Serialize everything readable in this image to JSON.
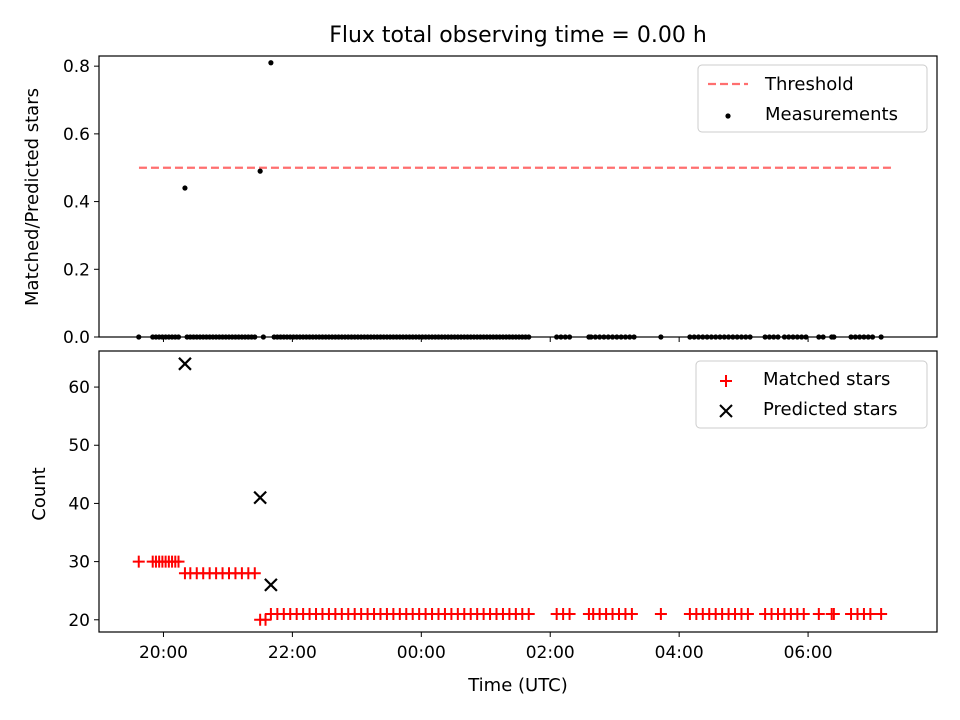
{
  "chart_data": [
    {
      "type": "scatter",
      "title": "Flux total observing time = 0.00 h",
      "ylabel": "Matched/Predicted stars",
      "xlabel": "",
      "x_unit": "hours (UTC), continuing past midnight",
      "xlim": [
        19.0,
        32.0
      ],
      "ylim": [
        0.0,
        0.83
      ],
      "yticks": [
        "0.0",
        "0.2",
        "0.4",
        "0.6",
        "0.8"
      ],
      "legend_position": "upper right",
      "series": [
        {
          "name": "Threshold",
          "style": "dashed-line",
          "color": "#ff6f6f",
          "x": [
            19.62,
            31.33
          ],
          "y": [
            0.5,
            0.5
          ]
        },
        {
          "name": "Measurements",
          "style": "dots",
          "color": "#000000",
          "nonzero_points": [
            {
              "x": "20:20",
              "y": 0.44
            },
            {
              "x": "21:30",
              "y": 0.49
            },
            {
              "x": "21:40",
              "y": 0.81
            }
          ],
          "zero_value_times": [
            "19:37",
            "19:50",
            "19:53",
            "19:56",
            "19:59",
            "20:02",
            "20:05",
            "20:08",
            "20:11",
            "20:14",
            "20:22",
            "20:25",
            "20:28",
            "20:31",
            "20:34",
            "20:37",
            "20:40",
            "20:43",
            "20:46",
            "20:49",
            "20:52",
            "20:55",
            "20:58",
            "21:01",
            "21:04",
            "21:07",
            "21:10",
            "21:13",
            "21:16",
            "21:19",
            "21:22",
            "21:25",
            "21:33",
            "21:43",
            "21:46",
            "21:49",
            "21:52",
            "21:55",
            "21:58",
            "22:01",
            "22:04",
            "22:07",
            "22:10",
            "22:13",
            "22:16",
            "22:19",
            "22:22",
            "22:25",
            "22:28",
            "22:31",
            "22:34",
            "22:37",
            "22:40",
            "22:43",
            "22:46",
            "22:49",
            "22:52",
            "22:55",
            "22:58",
            "23:01",
            "23:04",
            "23:07",
            "23:10",
            "23:13",
            "23:16",
            "23:19",
            "23:22",
            "23:25",
            "23:28",
            "23:31",
            "23:34",
            "23:37",
            "23:40",
            "23:43",
            "23:46",
            "23:49",
            "23:52",
            "23:55",
            "23:58",
            "00:01",
            "00:04",
            "00:07",
            "00:10",
            "00:13",
            "00:16",
            "00:19",
            "00:22",
            "00:25",
            "00:28",
            "00:31",
            "00:34",
            "00:37",
            "00:40",
            "00:43",
            "00:46",
            "00:49",
            "00:52",
            "00:55",
            "00:58",
            "01:01",
            "01:04",
            "01:07",
            "01:10",
            "01:13",
            "01:16",
            "01:19",
            "01:22",
            "01:25",
            "01:28",
            "01:31",
            "01:34",
            "01:37",
            "01:40",
            "02:06",
            "02:10",
            "02:14",
            "02:18",
            "02:36",
            "02:38",
            "02:42",
            "02:46",
            "02:50",
            "02:54",
            "02:58",
            "03:02",
            "03:06",
            "03:10",
            "03:14",
            "03:18",
            "03:43",
            "04:10",
            "04:14",
            "04:18",
            "04:22",
            "04:26",
            "04:30",
            "04:34",
            "04:38",
            "04:42",
            "04:46",
            "04:50",
            "04:54",
            "04:58",
            "05:02",
            "05:06",
            "05:20",
            "05:24",
            "05:28",
            "05:32",
            "05:38",
            "05:42",
            "05:46",
            "05:50",
            "05:54",
            "05:58",
            "06:10",
            "06:14",
            "06:22",
            "06:24",
            "06:40",
            "06:44",
            "06:48",
            "06:52",
            "06:56",
            "07:00",
            "07:08"
          ]
        }
      ]
    },
    {
      "type": "scatter",
      "title": "",
      "ylabel": "Count",
      "xlabel": "Time (UTC)",
      "x_unit": "hours (UTC), continuing past midnight",
      "xlim": [
        19.0,
        32.0
      ],
      "ylim": [
        17.9,
        66.2
      ],
      "yticks": [
        "20",
        "30",
        "40",
        "50",
        "60"
      ],
      "xticks": [
        {
          "value": 20,
          "label": "20:00"
        },
        {
          "value": 22,
          "label": "22:00"
        },
        {
          "value": 24,
          "label": "00:00"
        },
        {
          "value": 26,
          "label": "02:00"
        },
        {
          "value": 28,
          "label": "04:00"
        },
        {
          "value": 30,
          "label": "06:00"
        }
      ],
      "legend_position": "upper right",
      "series": [
        {
          "name": "Matched stars",
          "marker": "plus",
          "color": "#ff0000",
          "groups": [
            {
              "y": 30,
              "times": [
                "19:37",
                "19:50",
                "19:53",
                "19:56",
                "19:59",
                "20:02",
                "20:05",
                "20:08",
                "20:11",
                "20:14"
              ]
            },
            {
              "y": 28,
              "times": [
                "20:20",
                "20:25",
                "20:31",
                "20:37",
                "20:43",
                "20:49",
                "20:55",
                "21:01",
                "21:07",
                "21:13",
                "21:19",
                "21:25"
              ]
            },
            {
              "y": 20,
              "times": [
                "21:30",
                "21:35"
              ]
            },
            {
              "y": 21,
              "times": [
                "21:40",
                "21:46",
                "21:52",
                "21:58",
                "22:04",
                "22:10",
                "22:16",
                "22:22",
                "22:28",
                "22:34",
                "22:40",
                "22:46",
                "22:52",
                "22:58",
                "23:04",
                "23:10",
                "23:16",
                "23:22",
                "23:28",
                "23:34",
                "23:40",
                "23:46",
                "23:52",
                "23:58",
                "00:04",
                "00:10",
                "00:16",
                "00:22",
                "00:28",
                "00:34",
                "00:40",
                "00:46",
                "00:52",
                "00:58",
                "01:04",
                "01:10",
                "01:16",
                "01:22",
                "01:28",
                "01:34",
                "01:40",
                "02:06",
                "02:12",
                "02:18",
                "02:36",
                "02:40",
                "02:46",
                "02:52",
                "02:58",
                "03:04",
                "03:10",
                "03:16",
                "03:43",
                "04:10",
                "04:16",
                "04:22",
                "04:28",
                "04:34",
                "04:40",
                "04:46",
                "04:52",
                "04:58",
                "05:04",
                "05:20",
                "05:26",
                "05:32",
                "05:38",
                "05:44",
                "05:50",
                "05:56",
                "06:10",
                "06:22",
                "06:24",
                "06:40",
                "06:46",
                "06:52",
                "06:58",
                "07:08"
              ]
            }
          ]
        },
        {
          "name": "Predicted stars",
          "marker": "x",
          "color": "#000000",
          "points": [
            {
              "x": "20:20",
              "y": 64
            },
            {
              "x": "21:30",
              "y": 41
            },
            {
              "x": "21:40",
              "y": 26
            }
          ]
        }
      ]
    }
  ]
}
